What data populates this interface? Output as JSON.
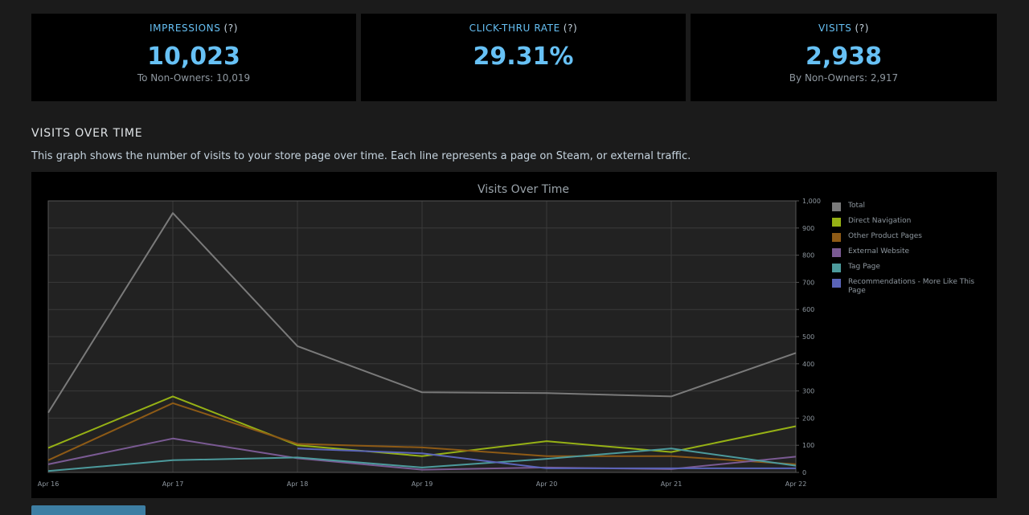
{
  "stats": [
    {
      "label": "IMPRESSIONS",
      "help": "(?)",
      "value": "10,023",
      "sub": "To Non-Owners: 10,019"
    },
    {
      "label": "CLICK-THRU RATE",
      "help": "(?)",
      "value": "29.31%",
      "sub": ""
    },
    {
      "label": "VISITS",
      "help": "(?)",
      "value": "2,938",
      "sub": "By Non-Owners: 2,917"
    }
  ],
  "section": {
    "title": "VISITS OVER TIME",
    "description": "This graph shows the number of visits to your store page over time. Each line represents a page on Steam, or external traffic."
  },
  "chart_data": {
    "type": "line",
    "title": "Visits Over Time",
    "categories": [
      "Apr 16",
      "Apr 17",
      "Apr 18",
      "Apr 19",
      "Apr 20",
      "Apr 21",
      "Apr 22"
    ],
    "ylim": [
      0,
      1000
    ],
    "yticks": [
      "0",
      "100",
      "200",
      "300",
      "400",
      "500",
      "600",
      "700",
      "800",
      "900",
      "1,000"
    ],
    "grid": true,
    "legend_position": "right",
    "series": [
      {
        "name": "Total",
        "color": "#7a7a7a",
        "values": [
          220,
          955,
          465,
          295,
          292,
          280,
          440
        ]
      },
      {
        "name": "Direct Navigation",
        "color": "#96b115",
        "values": [
          90,
          280,
          100,
          60,
          115,
          75,
          170
        ]
      },
      {
        "name": "Other Product Pages",
        "color": "#8d5a16",
        "values": [
          45,
          255,
          105,
          92,
          60,
          60,
          30
        ]
      },
      {
        "name": "External Website",
        "color": "#7a5a93",
        "values": [
          30,
          125,
          52,
          10,
          18,
          12,
          58
        ]
      },
      {
        "name": "Tag Page",
        "color": "#4c9a9c",
        "values": [
          5,
          45,
          55,
          18,
          50,
          88,
          25
        ]
      },
      {
        "name": "Recommendations - More Like This Page",
        "color": "#5a64b8",
        "values": [
          null,
          null,
          88,
          70,
          15,
          15,
          15
        ]
      }
    ]
  }
}
